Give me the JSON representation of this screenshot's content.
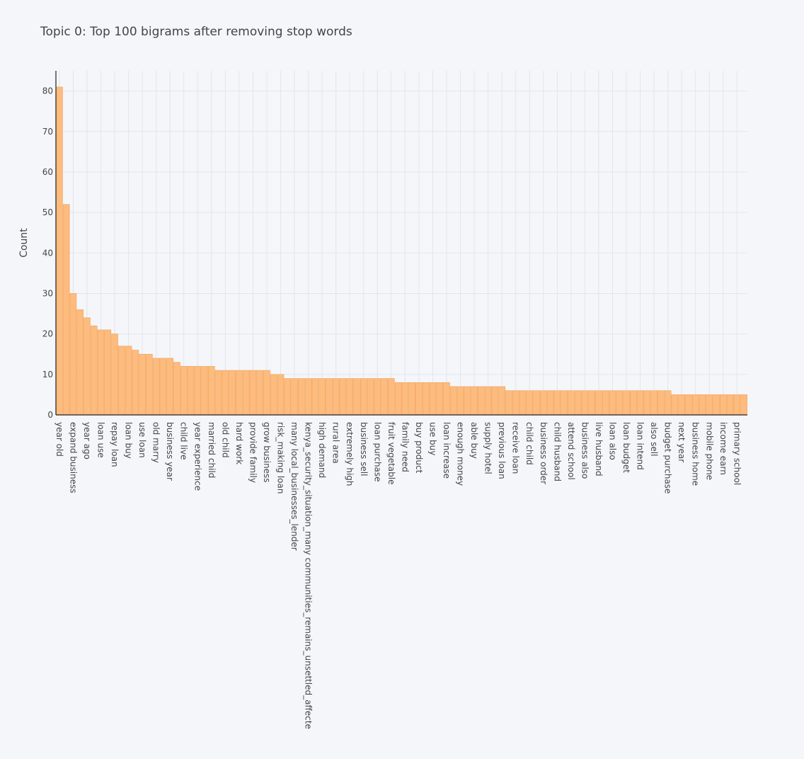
{
  "chart_data": {
    "type": "bar",
    "title": "Topic 0: Top 100 bigrams after removing stop words",
    "xlabel": "",
    "ylabel": "Count",
    "ylim": [
      0,
      85
    ],
    "y_ticks": [
      0,
      10,
      20,
      30,
      40,
      50,
      60,
      70,
      80
    ],
    "grid": true,
    "bar_color": "#fdbb7e",
    "bar_edge_color": "#f0a35a",
    "categories": [
      "year old",
      "",
      "expand business",
      "",
      "year ago",
      "",
      "loan use",
      "",
      "repay loan",
      "",
      "loan buy",
      "",
      "use loan",
      "",
      "old marry",
      "",
      "business year",
      "",
      "child live",
      "",
      "year experience",
      "",
      "married child",
      "",
      "old child",
      "",
      "hard work",
      "",
      "provide family",
      "",
      "grow business",
      "",
      "risk_making loan",
      "",
      "many local_businesses_lender",
      "",
      "kenya_security_situation_many communities_remains_unsettled_affecte",
      "",
      "high demand",
      "",
      "rural area",
      "",
      "extremely high",
      "",
      "business sell",
      "",
      "loan purchase",
      "",
      "fruit vegetable",
      "",
      "family need",
      "",
      "buy product",
      "",
      "use buy",
      "",
      "loan increase",
      "",
      "enough money",
      "",
      "able buy",
      "",
      "supply hotel",
      "",
      "previous loan",
      "",
      "receive loan",
      "",
      "child child",
      "",
      "business order",
      "",
      "child husband",
      "",
      "attend school",
      "",
      "business also",
      "",
      "live husband",
      "",
      "loan also",
      "",
      "loan budget",
      "",
      "loan intend",
      "",
      "also sell",
      "",
      "budget purchase",
      "",
      "next year",
      "",
      "business home",
      "",
      "mobile phone",
      "",
      "income earn",
      "",
      "primary school",
      ""
    ],
    "values": [
      81,
      52,
      30,
      26,
      24,
      22,
      21,
      21,
      20,
      17,
      17,
      16,
      15,
      15,
      14,
      14,
      14,
      13,
      12,
      12,
      12,
      12,
      12,
      11,
      11,
      11,
      11,
      11,
      11,
      11,
      11,
      10,
      10,
      9,
      9,
      9,
      9,
      9,
      9,
      9,
      9,
      9,
      9,
      9,
      9,
      9,
      9,
      9,
      9,
      8,
      8,
      8,
      8,
      8,
      8,
      8,
      8,
      7,
      7,
      7,
      7,
      7,
      7,
      7,
      7,
      6,
      6,
      6,
      6,
      6,
      6,
      6,
      6,
      6,
      6,
      6,
      6,
      6,
      6,
      6,
      6,
      6,
      6,
      6,
      6,
      6,
      6,
      6,
      6,
      5,
      5,
      5,
      5,
      5,
      5,
      5,
      5,
      5,
      5,
      5
    ]
  }
}
